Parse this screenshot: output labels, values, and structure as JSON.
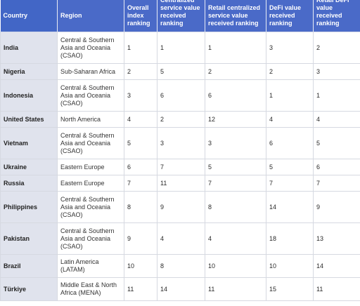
{
  "table": {
    "headers": [
      "Country",
      "Region",
      "Overall index ranking",
      "Centralized service value received ranking",
      "Retail centralized service value received ranking",
      "DeFi value received ranking",
      "Retail DeFi value received ranking"
    ],
    "rows": [
      {
        "country": "India",
        "region": "Central & Southern Asia and Oceania (CSAO)",
        "overall": "1",
        "centralized": "1",
        "retail_centralized": "1",
        "defi": "3",
        "retail_defi": "2"
      },
      {
        "country": "Nigeria",
        "region": "Sub-Saharan Africa",
        "overall": "2",
        "centralized": "5",
        "retail_centralized": "2",
        "defi": "2",
        "retail_defi": "3"
      },
      {
        "country": "Indonesia",
        "region": "Central & Southern Asia and Oceania (CSAO)",
        "overall": "3",
        "centralized": "6",
        "retail_centralized": "6",
        "defi": "1",
        "retail_defi": "1"
      },
      {
        "country": "United States",
        "region": "North America",
        "overall": "4",
        "centralized": "2",
        "retail_centralized": "12",
        "defi": "4",
        "retail_defi": "4"
      },
      {
        "country": "Vietnam",
        "region": "Central & Southern Asia and Oceania (CSAO)",
        "overall": "5",
        "centralized": "3",
        "retail_centralized": "3",
        "defi": "6",
        "retail_defi": "5"
      },
      {
        "country": "Ukraine",
        "region": "Eastern Europe",
        "overall": "6",
        "centralized": "7",
        "retail_centralized": "5",
        "defi": "5",
        "retail_defi": "6"
      },
      {
        "country": "Russia",
        "region": "Eastern Europe",
        "overall": "7",
        "centralized": "11",
        "retail_centralized": "7",
        "defi": "7",
        "retail_defi": "7"
      },
      {
        "country": "Philippines",
        "region": "Central & Southern Asia and Oceania (CSAO)",
        "overall": "8",
        "centralized": "9",
        "retail_centralized": "8",
        "defi": "14",
        "retail_defi": "9"
      },
      {
        "country": "Pakistan",
        "region": "Central & Southern Asia and Oceania (CSAO)",
        "overall": "9",
        "centralized": "4",
        "retail_centralized": "4",
        "defi": "18",
        "retail_defi": "13"
      },
      {
        "country": "Brazil",
        "region": "Latin America (LATAM)",
        "overall": "10",
        "centralized": "8",
        "retail_centralized": "10",
        "defi": "10",
        "retail_defi": "14"
      },
      {
        "country": "Türkiye",
        "region": "Middle East & North Africa (MENA)",
        "overall": "11",
        "centralized": "14",
        "retail_centralized": "11",
        "defi": "15",
        "retail_defi": "11"
      }
    ]
  }
}
